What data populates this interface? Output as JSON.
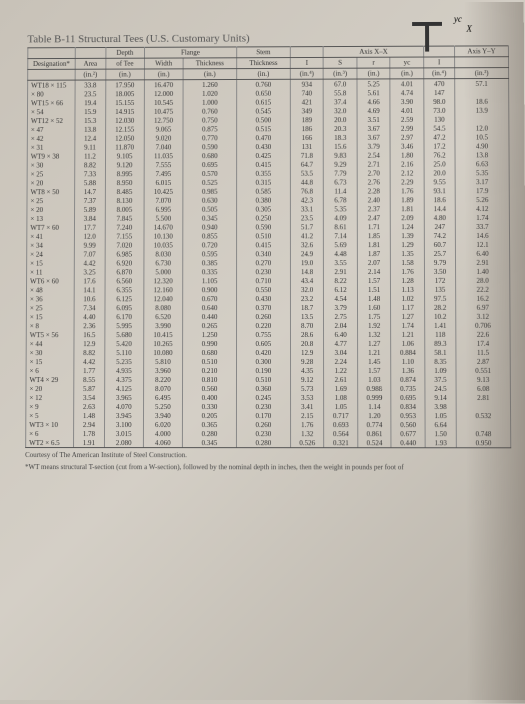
{
  "title": "Table B-11   Structural Tees (U.S. Customary Units)",
  "diagram": {
    "x_label": "X",
    "yc_label": "yc"
  },
  "headers": {
    "groups": [
      "",
      "",
      "Depth",
      "Flange",
      "",
      "Stem",
      "",
      "Axis X–X",
      "",
      "",
      "",
      "Axis Y–Y"
    ],
    "sub": [
      "Designation*",
      "Area",
      "of Tee",
      "Width",
      "Thickness",
      "Thickness",
      "I",
      "S",
      "r",
      "yc",
      "I",
      ""
    ],
    "units": [
      "",
      "(in.²)",
      "(in.)",
      "(in.)",
      "(in.)",
      "(in.)",
      "(in.⁴)",
      "(in.³)",
      "(in.)",
      "(in.)",
      "(in.⁴)",
      "(in.³)"
    ]
  },
  "rows": [
    {
      "d": "WT18 × 115",
      "a": "33.8",
      "t": "17.950",
      "w": "16.470",
      "ft": "1.260",
      "st": "0.760",
      "I": "934",
      "S": "67.0",
      "r": "5.25",
      "yc": "4.01",
      "Iy": "470",
      "Sy": "57.1"
    },
    {
      "d": "      × 80",
      "a": "23.5",
      "t": "18.005",
      "w": "12.000",
      "ft": "1.020",
      "st": "0.650",
      "I": "740",
      "S": "55.8",
      "r": "5.61",
      "yc": "4.74",
      "Iy": "147",
      "Sy": ""
    },
    {
      "d": "WT15 × 66",
      "a": "19.4",
      "t": "15.155",
      "w": "10.545",
      "ft": "1.000",
      "st": "0.615",
      "I": "421",
      "S": "37.4",
      "r": "4.66",
      "yc": "3.90",
      "Iy": "98.0",
      "Sy": "18.6"
    },
    {
      "d": "      × 54",
      "a": "15.9",
      "t": "14.915",
      "w": "10.475",
      "ft": "0.760",
      "st": "0.545",
      "I": "349",
      "S": "32.0",
      "r": "4.69",
      "yc": "4.01",
      "Iy": "73.0",
      "Sy": "13.9"
    },
    {
      "d": "WT12 × 52",
      "a": "15.3",
      "t": "12.030",
      "w": "12.750",
      "ft": "0.750",
      "st": "0.500",
      "I": "189",
      "S": "20.0",
      "r": "3.51",
      "yc": "2.59",
      "Iy": "130",
      "Sy": ""
    },
    {
      "d": "      × 47",
      "a": "13.8",
      "t": "12.155",
      "w": "9.065",
      "ft": "0.875",
      "st": "0.515",
      "I": "186",
      "S": "20.3",
      "r": "3.67",
      "yc": "2.99",
      "Iy": "54.5",
      "Sy": "12.0"
    },
    {
      "d": "      × 42",
      "a": "12.4",
      "t": "12.050",
      "w": "9.020",
      "ft": "0.770",
      "st": "0.470",
      "I": "166",
      "S": "18.3",
      "r": "3.67",
      "yc": "2.97",
      "Iy": "47.2",
      "Sy": "10.5"
    },
    {
      "d": "      × 31",
      "a": "9.11",
      "t": "11.870",
      "w": "7.040",
      "ft": "0.590",
      "st": "0.430",
      "I": "131",
      "S": "15.6",
      "r": "3.79",
      "yc": "3.46",
      "Iy": "17.2",
      "Sy": "4.90"
    },
    {
      "d": "WT9 × 38",
      "a": "11.2",
      "t": "9.105",
      "w": "11.035",
      "ft": "0.680",
      "st": "0.425",
      "I": "71.8",
      "S": "9.83",
      "r": "2.54",
      "yc": "1.80",
      "Iy": "76.2",
      "Sy": "13.8"
    },
    {
      "d": "      × 30",
      "a": "8.82",
      "t": "9.120",
      "w": "7.555",
      "ft": "0.695",
      "st": "0.415",
      "I": "64.7",
      "S": "9.29",
      "r": "2.71",
      "yc": "2.16",
      "Iy": "25.0",
      "Sy": "6.63"
    },
    {
      "d": "      × 25",
      "a": "7.33",
      "t": "8.995",
      "w": "7.495",
      "ft": "0.570",
      "st": "0.355",
      "I": "53.5",
      "S": "7.79",
      "r": "2.70",
      "yc": "2.12",
      "Iy": "20.0",
      "Sy": "5.35"
    },
    {
      "d": "      × 20",
      "a": "5.88",
      "t": "8.950",
      "w": "6.015",
      "ft": "0.525",
      "st": "0.315",
      "I": "44.8",
      "S": "6.73",
      "r": "2.76",
      "yc": "2.29",
      "Iy": "9.55",
      "Sy": "3.17"
    },
    {
      "d": "WT8 × 50",
      "a": "14.7",
      "t": "8.485",
      "w": "10.425",
      "ft": "0.985",
      "st": "0.585",
      "I": "76.8",
      "S": "11.4",
      "r": "2.28",
      "yc": "1.76",
      "Iy": "93.1",
      "Sy": "17.9"
    },
    {
      "d": "      × 25",
      "a": "7.37",
      "t": "8.130",
      "w": "7.070",
      "ft": "0.630",
      "st": "0.380",
      "I": "42.3",
      "S": "6.78",
      "r": "2.40",
      "yc": "1.89",
      "Iy": "18.6",
      "Sy": "5.26"
    },
    {
      "d": "      × 20",
      "a": "5.89",
      "t": "8.005",
      "w": "6.995",
      "ft": "0.505",
      "st": "0.305",
      "I": "33.1",
      "S": "5.35",
      "r": "2.37",
      "yc": "1.81",
      "Iy": "14.4",
      "Sy": "4.12"
    },
    {
      "d": "      × 13",
      "a": "3.84",
      "t": "7.845",
      "w": "5.500",
      "ft": "0.345",
      "st": "0.250",
      "I": "23.5",
      "S": "4.09",
      "r": "2.47",
      "yc": "2.09",
      "Iy": "4.80",
      "Sy": "1.74"
    },
    {
      "d": "WT7 × 60",
      "a": "17.7",
      "t": "7.240",
      "w": "14.670",
      "ft": "0.940",
      "st": "0.590",
      "I": "51.7",
      "S": "8.61",
      "r": "1.71",
      "yc": "1.24",
      "Iy": "247",
      "Sy": "33.7"
    },
    {
      "d": "      × 41",
      "a": "12.0",
      "t": "7.155",
      "w": "10.130",
      "ft": "0.855",
      "st": "0.510",
      "I": "41.2",
      "S": "7.14",
      "r": "1.85",
      "yc": "1.39",
      "Iy": "74.2",
      "Sy": "14.6"
    },
    {
      "d": "      × 34",
      "a": "9.99",
      "t": "7.020",
      "w": "10.035",
      "ft": "0.720",
      "st": "0.415",
      "I": "32.6",
      "S": "5.69",
      "r": "1.81",
      "yc": "1.29",
      "Iy": "60.7",
      "Sy": "12.1"
    },
    {
      "d": "      × 24",
      "a": "7.07",
      "t": "6.985",
      "w": "8.030",
      "ft": "0.595",
      "st": "0.340",
      "I": "24.9",
      "S": "4.48",
      "r": "1.87",
      "yc": "1.35",
      "Iy": "25.7",
      "Sy": "6.40"
    },
    {
      "d": "      × 15",
      "a": "4.42",
      "t": "6.920",
      "w": "6.730",
      "ft": "0.385",
      "st": "0.270",
      "I": "19.0",
      "S": "3.55",
      "r": "2.07",
      "yc": "1.58",
      "Iy": "9.79",
      "Sy": "2.91"
    },
    {
      "d": "      × 11",
      "a": "3.25",
      "t": "6.870",
      "w": "5.000",
      "ft": "0.335",
      "st": "0.230",
      "I": "14.8",
      "S": "2.91",
      "r": "2.14",
      "yc": "1.76",
      "Iy": "3.50",
      "Sy": "1.40"
    },
    {
      "d": "WT6 × 60",
      "a": "17.6",
      "t": "6.560",
      "w": "12.320",
      "ft": "1.105",
      "st": "0.710",
      "I": "43.4",
      "S": "8.22",
      "r": "1.57",
      "yc": "1.28",
      "Iy": "172",
      "Sy": "28.0"
    },
    {
      "d": "      × 48",
      "a": "14.1",
      "t": "6.355",
      "w": "12.160",
      "ft": "0.900",
      "st": "0.550",
      "I": "32.0",
      "S": "6.12",
      "r": "1.51",
      "yc": "1.13",
      "Iy": "135",
      "Sy": "22.2"
    },
    {
      "d": "      × 36",
      "a": "10.6",
      "t": "6.125",
      "w": "12.040",
      "ft": "0.670",
      "st": "0.430",
      "I": "23.2",
      "S": "4.54",
      "r": "1.48",
      "yc": "1.02",
      "Iy": "97.5",
      "Sy": "16.2"
    },
    {
      "d": "      × 25",
      "a": "7.34",
      "t": "6.095",
      "w": "8.080",
      "ft": "0.640",
      "st": "0.370",
      "I": "18.7",
      "S": "3.79",
      "r": "1.60",
      "yc": "1.17",
      "Iy": "28.2",
      "Sy": "6.97"
    },
    {
      "d": "      × 15",
      "a": "4.40",
      "t": "6.170",
      "w": "6.520",
      "ft": "0.440",
      "st": "0.260",
      "I": "13.5",
      "S": "2.75",
      "r": "1.75",
      "yc": "1.27",
      "Iy": "10.2",
      "Sy": "3.12"
    },
    {
      "d": "      × 8",
      "a": "2.36",
      "t": "5.995",
      "w": "3.990",
      "ft": "0.265",
      "st": "0.220",
      "I": "8.70",
      "S": "2.04",
      "r": "1.92",
      "yc": "1.74",
      "Iy": "1.41",
      "Sy": "0.706"
    },
    {
      "d": "WT5 × 56",
      "a": "16.5",
      "t": "5.680",
      "w": "10.415",
      "ft": "1.250",
      "st": "0.755",
      "I": "28.6",
      "S": "6.40",
      "r": "1.32",
      "yc": "1.21",
      "Iy": "118",
      "Sy": "22.6"
    },
    {
      "d": "      × 44",
      "a": "12.9",
      "t": "5.420",
      "w": "10.265",
      "ft": "0.990",
      "st": "0.605",
      "I": "20.8",
      "S": "4.77",
      "r": "1.27",
      "yc": "1.06",
      "Iy": "89.3",
      "Sy": "17.4"
    },
    {
      "d": "      × 30",
      "a": "8.82",
      "t": "5.110",
      "w": "10.080",
      "ft": "0.680",
      "st": "0.420",
      "I": "12.9",
      "S": "3.04",
      "r": "1.21",
      "yc": "0.884",
      "Iy": "58.1",
      "Sy": "11.5"
    },
    {
      "d": "      × 15",
      "a": "4.42",
      "t": "5.235",
      "w": "5.810",
      "ft": "0.510",
      "st": "0.300",
      "I": "9.28",
      "S": "2.24",
      "r": "1.45",
      "yc": "1.10",
      "Iy": "8.35",
      "Sy": "2.87"
    },
    {
      "d": "      × 6",
      "a": "1.77",
      "t": "4.935",
      "w": "3.960",
      "ft": "0.210",
      "st": "0.190",
      "I": "4.35",
      "S": "1.22",
      "r": "1.57",
      "yc": "1.36",
      "Iy": "1.09",
      "Sy": "0.551"
    },
    {
      "d": "WT4 × 29",
      "a": "8.55",
      "t": "4.375",
      "w": "8.220",
      "ft": "0.810",
      "st": "0.510",
      "I": "9.12",
      "S": "2.61",
      "r": "1.03",
      "yc": "0.874",
      "Iy": "37.5",
      "Sy": "9.13"
    },
    {
      "d": "      × 20",
      "a": "5.87",
      "t": "4.125",
      "w": "8.070",
      "ft": "0.560",
      "st": "0.360",
      "I": "5.73",
      "S": "1.69",
      "r": "0.988",
      "yc": "0.735",
      "Iy": "24.5",
      "Sy": "6.08"
    },
    {
      "d": "      × 12",
      "a": "3.54",
      "t": "3.965",
      "w": "6.495",
      "ft": "0.400",
      "st": "0.245",
      "I": "3.53",
      "S": "1.08",
      "r": "0.999",
      "yc": "0.695",
      "Iy": "9.14",
      "Sy": "2.81"
    },
    {
      "d": "      × 9",
      "a": "2.63",
      "t": "4.070",
      "w": "5.250",
      "ft": "0.330",
      "st": "0.230",
      "I": "3.41",
      "S": "1.05",
      "r": "1.14",
      "yc": "0.834",
      "Iy": "3.98",
      "Sy": ""
    },
    {
      "d": "      × 5",
      "a": "1.48",
      "t": "3.945",
      "w": "3.940",
      "ft": "0.205",
      "st": "0.170",
      "I": "2.15",
      "S": "0.717",
      "r": "1.20",
      "yc": "0.953",
      "Iy": "1.05",
      "Sy": "0.532"
    },
    {
      "d": "WT3 × 10",
      "a": "2.94",
      "t": "3.100",
      "w": "6.020",
      "ft": "0.365",
      "st": "0.260",
      "I": "1.76",
      "S": "0.693",
      "r": "0.774",
      "yc": "0.560",
      "Iy": "6.64",
      "Sy": ""
    },
    {
      "d": "      × 6",
      "a": "1.78",
      "t": "3.015",
      "w": "4.000",
      "ft": "0.280",
      "st": "0.230",
      "I": "1.32",
      "S": "0.564",
      "r": "0.861",
      "yc": "0.677",
      "Iy": "1.50",
      "Sy": "0.748"
    },
    {
      "d": "WT2 × 6.5",
      "a": "1.91",
      "t": "2.080",
      "w": "4.060",
      "ft": "0.345",
      "st": "0.280",
      "I": "0.526",
      "S": "0.321",
      "r": "0.524",
      "yc": "0.440",
      "Iy": "1.93",
      "Sy": "0.950"
    }
  ],
  "footnotes": [
    "Courtesy of The American Institute of Steel Construction.",
    "*WT means structural T-section (cut from a W-section), followed by the nominal depth in inches, then the weight in pounds per foot of"
  ],
  "colors": {
    "text": "#333333",
    "border": "#888888",
    "bg_light": "#d4cfc6",
    "bg_dark": "#b8b2a8"
  }
}
